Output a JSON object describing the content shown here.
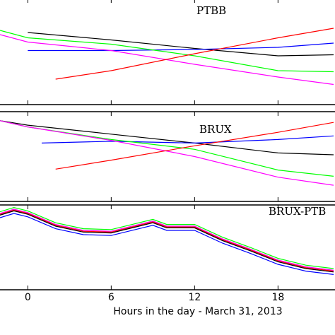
{
  "chart_data": [
    {
      "type": "line",
      "title": "PTBB",
      "xlim": [
        -2,
        22.1
      ],
      "ylim": [
        0,
        100
      ],
      "xticks": [
        0,
        6,
        12,
        18
      ],
      "series": [
        {
          "color": "#000000",
          "x": [
            0,
            6,
            12,
            18,
            22
          ],
          "values": [
            68,
            61,
            53,
            46,
            47
          ]
        },
        {
          "color": "#0000ff",
          "x": [
            0,
            6,
            12,
            18,
            22
          ],
          "values": [
            51,
            51,
            52,
            54,
            58
          ]
        },
        {
          "color": "#00ff00",
          "x": [
            -2,
            0,
            6,
            12,
            18,
            22
          ],
          "values": [
            70,
            63,
            57,
            46,
            32,
            31
          ]
        },
        {
          "color": "#ff00ff",
          "x": [
            -2,
            0,
            6,
            12,
            18,
            22
          ],
          "values": [
            66,
            59,
            51,
            38,
            26,
            19
          ]
        },
        {
          "color": "#ff0000",
          "x": [
            2,
            6,
            12,
            18,
            22
          ],
          "values": [
            24,
            32,
            48,
            63,
            72
          ]
        }
      ]
    },
    {
      "type": "line",
      "title": "BRUX",
      "xlim": [
        -2,
        22.1
      ],
      "ylim": [
        0,
        100
      ],
      "xticks": [
        0,
        6,
        12,
        18
      ],
      "series": [
        {
          "color": "#000000",
          "x": [
            -2,
            0,
            6,
            12,
            18,
            22
          ],
          "values": [
            90,
            85,
            75,
            65,
            54,
            52
          ]
        },
        {
          "color": "#0000ff",
          "x": [
            1,
            6,
            12,
            18,
            22
          ],
          "values": [
            65,
            67,
            65,
            69,
            73
          ]
        },
        {
          "color": "#00ff00",
          "x": [
            -2,
            0,
            6,
            12,
            18,
            22
          ],
          "values": [
            90,
            83,
            69,
            58,
            35,
            28
          ]
        },
        {
          "color": "#ff00ff",
          "x": [
            -2,
            0,
            6,
            12,
            18,
            22
          ],
          "values": [
            90,
            83,
            68,
            50,
            27,
            18
          ]
        },
        {
          "color": "#ff0000",
          "x": [
            2,
            6,
            12,
            18,
            22
          ],
          "values": [
            36,
            46,
            62,
            77,
            88
          ]
        }
      ]
    },
    {
      "type": "line",
      "title": "BRUX-PTB",
      "xlim": [
        -2,
        22.1
      ],
      "ylim": [
        0,
        100
      ],
      "xticks": [
        0,
        6,
        12,
        18
      ],
      "xlabel": "Hours in the day - March 31, 2013",
      "series": [
        {
          "color": "#00ff00",
          "x": [
            -2,
            -1,
            0,
            2,
            4,
            6,
            8,
            9,
            10,
            12,
            14,
            16,
            18,
            20,
            22
          ],
          "values": [
            92,
            97,
            93,
            79,
            72,
            71,
            79,
            83,
            77,
            77,
            62,
            50,
            37,
            29,
            25
          ]
        },
        {
          "color": "#ff00ff",
          "x": [
            -2,
            -1,
            0,
            2,
            4,
            6,
            8,
            9,
            10,
            12,
            14,
            16,
            18,
            20,
            22
          ],
          "values": [
            90,
            95,
            91,
            77,
            70,
            69,
            77,
            81,
            75,
            75,
            60,
            48,
            35,
            27,
            23
          ]
        },
        {
          "color": "#ff0000",
          "x": [
            -2,
            -1,
            0,
            2,
            4,
            6,
            8,
            9,
            10,
            12,
            14,
            16,
            18,
            20,
            22
          ],
          "values": [
            89,
            94,
            90,
            76,
            69,
            68,
            76,
            80,
            74,
            74,
            59,
            47,
            34,
            26,
            22
          ]
        },
        {
          "color": "#000000",
          "x": [
            -2,
            -1,
            0,
            2,
            4,
            6,
            8,
            9,
            10,
            12,
            14,
            16,
            18,
            20,
            22
          ],
          "values": [
            88,
            93,
            89,
            75,
            68,
            67,
            75,
            79,
            73,
            73,
            58,
            46,
            33,
            25,
            21
          ]
        },
        {
          "color": "#0000ff",
          "x": [
            -2,
            -1,
            0,
            2,
            4,
            6,
            8,
            9,
            10,
            12,
            14,
            16,
            18,
            20,
            22
          ],
          "values": [
            85,
            90,
            86,
            72,
            65,
            64,
            72,
            76,
            70,
            70,
            55,
            43,
            30,
            22,
            18
          ]
        }
      ]
    }
  ]
}
